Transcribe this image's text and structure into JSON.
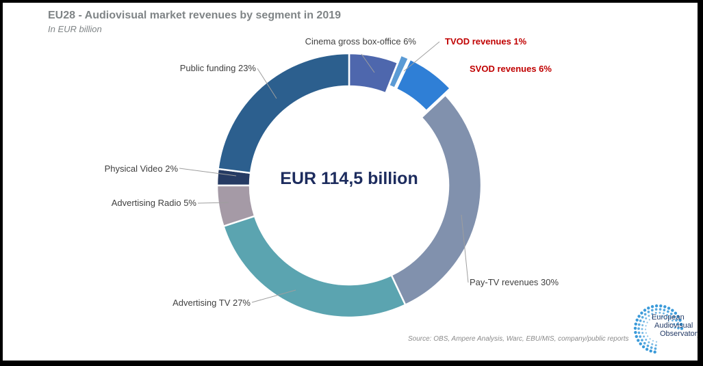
{
  "header": {
    "title": "EU28 - Audiovisual market revenues by segment in 2019",
    "subtitle": "In EUR billion"
  },
  "chart_data": {
    "type": "pie",
    "variant": "donut",
    "title": "EU28 - Audiovisual market revenues by segment in 2019",
    "subtitle": "In EUR billion",
    "center_text": "EUR 114,5 billion",
    "total": 114.5,
    "unit": "EUR billion",
    "slices": [
      {
        "label": "Cinema gross box-office",
        "value_pct": 6,
        "display": "Cinema gross box-office  6%",
        "color": "#4e67ad",
        "exploded": false,
        "highlight": false
      },
      {
        "label": "TVOD revenues",
        "value_pct": 1,
        "display": "TVOD revenues 1%",
        "color": "#5b9bd5",
        "exploded": true,
        "highlight": true
      },
      {
        "label": "SVOD revenues",
        "value_pct": 6,
        "display": "SVOD revenues 6%",
        "color": "#2f7fd6",
        "exploded": true,
        "highlight": true
      },
      {
        "label": "Pay-TV revenues",
        "value_pct": 30,
        "display": "Pay-TV revenues 30%",
        "color": "#8191ad",
        "exploded": false,
        "highlight": false
      },
      {
        "label": "Advertising TV",
        "value_pct": 27,
        "display": "Advertising TV 27%",
        "color": "#5ba4b0",
        "exploded": false,
        "highlight": false
      },
      {
        "label": "Advertising Radio",
        "value_pct": 5,
        "display": "Advertising Radio 5%",
        "color": "#a59aa6",
        "exploded": false,
        "highlight": false
      },
      {
        "label": "Physical Video",
        "value_pct": 2,
        "display": "Physical Video 2%",
        "color": "#263b63",
        "exploded": false,
        "highlight": false
      },
      {
        "label": "Public funding",
        "value_pct": 23,
        "display": "Public funding 23%",
        "color": "#2c5f8e",
        "exploded": false,
        "highlight": false
      }
    ]
  },
  "source": "Source: OBS, Ampere Analysis, Warc, EBU/MIS, company/public reports",
  "logo": {
    "lines": [
      "European",
      "Audiovisual",
      "Observatory"
    ],
    "color": "#3a9ad9",
    "icon": "dotted-circle-logo-icon"
  }
}
